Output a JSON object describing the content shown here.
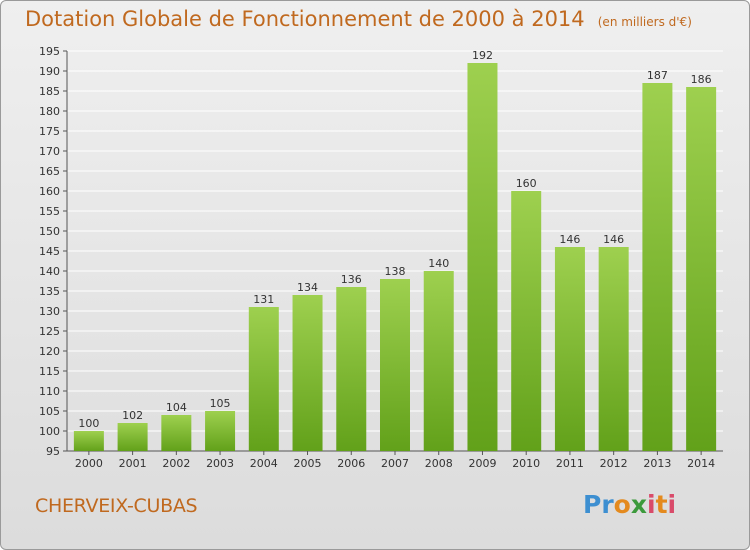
{
  "title": "Dotation Globale de Fonctionnement de 2000 à 2014",
  "unit": "(en milliers d'€)",
  "commune": "CHERVEIX-CUBAS",
  "brand": "Proxiti",
  "colors": {
    "title": "#c0691f",
    "bar_top": "#9ed04f",
    "bar_bottom": "#62a11a",
    "grid": "#ffffff"
  },
  "chart_data": {
    "type": "bar",
    "categories": [
      "2000",
      "2001",
      "2002",
      "2003",
      "2004",
      "2005",
      "2006",
      "2007",
      "2008",
      "2009",
      "2010",
      "2011",
      "2012",
      "2013",
      "2014"
    ],
    "values": [
      100,
      102,
      104,
      105,
      131,
      134,
      136,
      138,
      140,
      192,
      160,
      146,
      146,
      187,
      186
    ],
    "title": "Dotation Globale de Fonctionnement de 2000 à 2014",
    "subtitle": "(en milliers d'€)",
    "ylim": [
      95,
      195
    ],
    "yticks": [
      95,
      100,
      105,
      110,
      115,
      120,
      125,
      130,
      135,
      140,
      145,
      150,
      155,
      160,
      165,
      170,
      175,
      180,
      185,
      190,
      195
    ],
    "grid": true,
    "data_labels": true
  }
}
